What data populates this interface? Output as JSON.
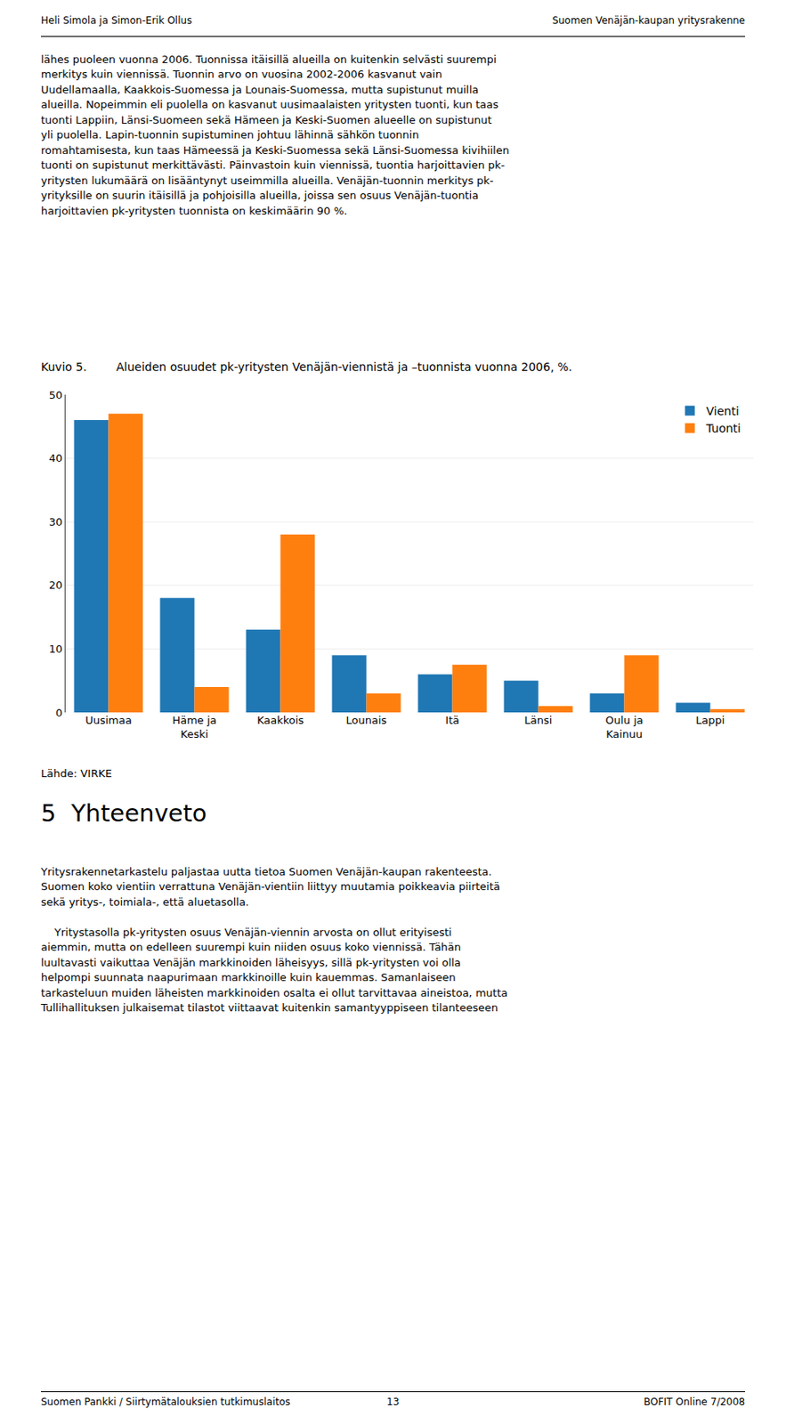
{
  "chart_data": {
    "type": "bar",
    "title": "Alueiden osuudet pk-yritysten Venäjän-viennistä ja –tuonnista vuonna 2006, %.",
    "categories": [
      "Uusimaa",
      "Häme ja\nKeski",
      "Kaakkois",
      "Lounais",
      "Itä",
      "Länsi",
      "Oulu ja\nKainuu",
      "Lappi"
    ],
    "series": [
      {
        "name": "Vienti",
        "values": [
          46,
          18,
          13,
          9,
          6,
          5,
          3,
          1.5
        ]
      },
      {
        "name": "Tuonti",
        "values": [
          47,
          4,
          28,
          3,
          7.5,
          1,
          9,
          0.5
        ]
      }
    ],
    "ylim": [
      0,
      50
    ],
    "yticks": [
      0,
      10,
      20,
      30,
      40,
      50
    ],
    "grid": true,
    "legend": "upper right",
    "annotations": [
      "Heli Simola ja Simon-Erik Ollus",
      "Suomen Venäjän-kaupan yritysrakenne",
      "lähes puoleen vuonna 2006. Tuonnissa itäisillä alueilla on kuitenkin selvästi suurempi\nmerkitys kuin viennissä. Tuonnin arvo on vuosina 2002-2006 kasvanut vain\nUudellamaalla, Kaakkois-Suomessa ja Lounais-Suomessa, mutta supistunut muilla\nalueilla. Nopeimmin eli puolella on kasvanut uusimaalaisten yritysten tuonti, kun taas\ntuonti Lappiin, Länsi-Suomeen sekä Hämeen ja Keski-Suomen alueelle on supistunut\nyli puolella. Lapin-tuonnin supistuminen johtuu lähinnä sähkön tuonnin\nromahtamisesta, kun taas Hämeessä ja Keski-Suomessa sekä Länsi-Suomessa kivihiilen\ntuonti on supistunut merkittävästi. Päinvastoin kuin viennissä, tuontia harjoittavien pk-\nyritysten lukumäärä on lisääntynyt useimmilla alueilla. Venäjän-tuonnin merkitys pk-\nyrityksille on suurin itäisillä ja pohjoisilla alueilla, joissa sen osuus Venäjän-tuontia\nharjoittavien pk-yritysten tuonnista on keskimäärin 90 %.",
      "Kuvio 5.",
      "Lähde: VIRKE",
      "5  Yhteenveto",
      "Yritysrakennetarkastelu paljastaa uutta tietoa Suomen Venäjän-kaupan rakenteesta.\nSuomen koko vientiin verrattuna Venäjän-vientiin liittyy muutamia poikkeavia piirteitä\nsekä yritys-, toimiala-, että aluetasolla.",
      "    Yritystasolla pk-yritysten osuus Venäjän-viennin arvosta on ollut erityisesti\naiemmin, mutta on edelleen suurempi kuin niiden osuus koko viennissä. Tähän\nluultavasti vaikuttaa Venäjän markkinoiden läheisyys, sillä pk-yritysten voi olla\nhelpompi suunnata naapurimaan markkinoille kuin kauemmas. Samanlaiseen\ntarkasteluun muiden läheisten markkinoiden osalta ei ollut tarvittavaa aineistoa, mutta\nTullihallituksen julkaisemat tilastot viittaavat kuitenkin samantyyppiseen tilanteeseen",
      "Suomen Pankki / Siirtymätalouksien tutkimuslaitos",
      "13",
      "BOFIT Online 7/2008"
    ]
  }
}
